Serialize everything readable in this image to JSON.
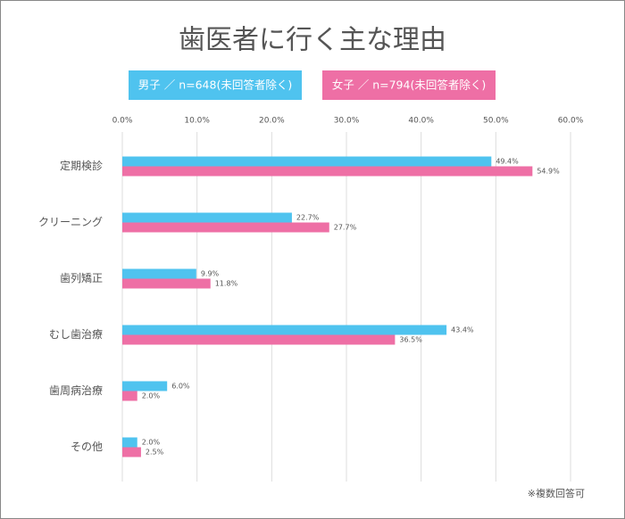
{
  "chart_data": {
    "type": "hbar",
    "title": "歯医者に行く主な理由",
    "categories": [
      "定期検診",
      "クリーニング",
      "歯列矯正",
      "むし歯治療",
      "歯周病治療",
      "その他"
    ],
    "series": [
      {
        "name": "男子 ／ n=648(未回答者除く)",
        "color": "#4fc3ef",
        "values": [
          49.4,
          22.7,
          9.9,
          43.4,
          6.0,
          2.0
        ],
        "value_labels": [
          "49.4%",
          "22.7%",
          "9.9%",
          "43.4%",
          "6.0%",
          "2.0%"
        ]
      },
      {
        "name": "女子 ／ n=794(未回答者除く)",
        "color": "#ee6fa5",
        "values": [
          54.9,
          27.7,
          11.8,
          36.5,
          2.0,
          2.5
        ],
        "value_labels": [
          "54.9%",
          "27.7%",
          "11.8%",
          "36.5%",
          "2.0%",
          "2.5%"
        ]
      }
    ],
    "xlim": [
      0,
      60
    ],
    "xticks": [
      {
        "value": 0,
        "label": "0.0%"
      },
      {
        "value": 10,
        "label": "10.0%"
      },
      {
        "value": 20,
        "label": "20.0%"
      },
      {
        "value": 30,
        "label": "30.0%"
      },
      {
        "value": 40,
        "label": "40.0%"
      },
      {
        "value": 50,
        "label": "50.0%"
      },
      {
        "value": 60,
        "label": "60.0%"
      }
    ],
    "grid": true,
    "note": "※複数回答可"
  }
}
